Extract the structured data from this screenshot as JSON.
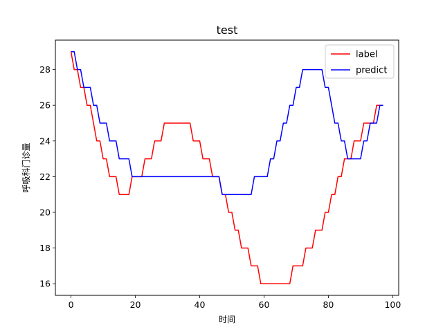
{
  "chart_data": {
    "type": "line",
    "title": "test",
    "xlabel": "时间",
    "ylabel": "呼吸科门诊量",
    "xlim": [
      -4.85,
      101.85
    ],
    "ylim": [
      15.35,
      29.65
    ],
    "xticks": [
      0,
      20,
      40,
      60,
      80,
      100
    ],
    "yticks": [
      16,
      18,
      20,
      22,
      24,
      26,
      28
    ],
    "legend_position": "top-right",
    "series": [
      {
        "name": "label",
        "color": "#ff0000",
        "x": [
          0,
          1,
          2,
          3,
          4,
          5,
          6,
          7,
          8,
          9,
          10,
          11,
          12,
          13,
          14,
          15,
          16,
          17,
          18,
          19,
          20,
          21,
          22,
          23,
          24,
          25,
          26,
          27,
          28,
          29,
          30,
          31,
          32,
          33,
          34,
          35,
          36,
          37,
          38,
          39,
          40,
          41,
          42,
          43,
          44,
          45,
          46,
          47,
          48,
          49,
          50,
          51,
          52,
          53,
          54,
          55,
          56,
          57,
          58,
          59,
          60,
          61,
          62,
          63,
          64,
          65,
          66,
          67,
          68,
          69,
          70,
          71,
          72,
          73,
          74,
          75,
          76,
          77,
          78,
          79,
          80,
          81,
          82,
          83,
          84,
          85,
          86,
          87,
          88,
          89,
          90,
          91,
          92,
          93,
          94,
          95,
          96,
          97
        ],
        "values": [
          29,
          28,
          28,
          27,
          27,
          26,
          26,
          25,
          24,
          24,
          23,
          23,
          22,
          22,
          22,
          21,
          21,
          21,
          21,
          22,
          22,
          22,
          22,
          23,
          23,
          23,
          24,
          24,
          24,
          25,
          25,
          25,
          25,
          25,
          25,
          25,
          25,
          25,
          24,
          24,
          24,
          23,
          23,
          23,
          22,
          22,
          22,
          21,
          21,
          20,
          20,
          19,
          19,
          18,
          18,
          18,
          17,
          17,
          17,
          16,
          16,
          16,
          16,
          16,
          16,
          16,
          16,
          16,
          16,
          17,
          17,
          17,
          17,
          18,
          18,
          18,
          19,
          19,
          19,
          20,
          20,
          21,
          21,
          22,
          22,
          23,
          23,
          23,
          24,
          24,
          24,
          25,
          25,
          25,
          25,
          26,
          26,
          26
        ]
      },
      {
        "name": "predict",
        "color": "#0000ff",
        "x": [
          0,
          1,
          2,
          3,
          4,
          5,
          6,
          7,
          8,
          9,
          10,
          11,
          12,
          13,
          14,
          15,
          16,
          17,
          18,
          19,
          20,
          21,
          22,
          23,
          24,
          25,
          26,
          27,
          28,
          29,
          30,
          31,
          32,
          33,
          34,
          35,
          36,
          37,
          38,
          39,
          40,
          41,
          42,
          43,
          44,
          45,
          46,
          47,
          48,
          49,
          50,
          51,
          52,
          53,
          54,
          55,
          56,
          57,
          58,
          59,
          60,
          61,
          62,
          63,
          64,
          65,
          66,
          67,
          68,
          69,
          70,
          71,
          72,
          73,
          74,
          75,
          76,
          77,
          78,
          79,
          80,
          81,
          82,
          83,
          84,
          85,
          86,
          87,
          88,
          89,
          90,
          91,
          92,
          93,
          94,
          95,
          96,
          97
        ],
        "values": [
          29,
          29,
          28,
          28,
          27,
          27,
          27,
          26,
          26,
          25,
          25,
          25,
          24,
          24,
          24,
          23,
          23,
          23,
          23,
          22,
          22,
          22,
          22,
          22,
          22,
          22,
          22,
          22,
          22,
          22,
          22,
          22,
          22,
          22,
          22,
          22,
          22,
          22,
          22,
          22,
          22,
          22,
          22,
          22,
          22,
          22,
          22,
          21,
          21,
          21,
          21,
          21,
          21,
          21,
          21,
          21,
          21,
          22,
          22,
          22,
          22,
          22,
          23,
          23,
          24,
          24,
          25,
          25,
          26,
          26,
          27,
          27,
          28,
          28,
          28,
          28,
          28,
          28,
          28,
          27,
          27,
          26,
          25,
          25,
          24,
          24,
          23,
          23,
          23,
          23,
          23,
          24,
          24,
          25,
          25,
          25,
          26,
          26
        ]
      }
    ]
  }
}
